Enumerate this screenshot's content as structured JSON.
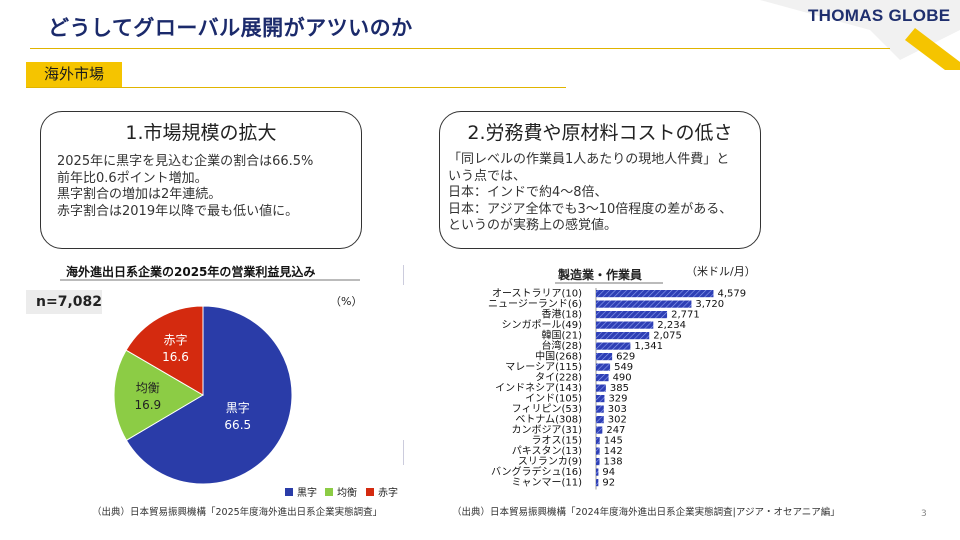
{
  "header": {
    "title": "どうしてグローバル展開がアツいのか",
    "logo_text": "THOMAS GLOBE"
  },
  "section_tag": "海外市場",
  "card1": {
    "title": "1.市場規模の拡大",
    "lines": [
      "2025年に黒字を見込む企業の割合は66.5%",
      "前年比0.6ポイント増加。",
      "黒字割合の増加は2年連続。",
      "赤字割合は2019年以降で最も低い値に。"
    ]
  },
  "card2": {
    "title": "2.労務費や原材料コストの低さ",
    "lines": [
      "「同レベルの作業員1人あたりの現地人件費」と",
      "いう点では、",
      "日本：インドで約4〜8倍、",
      "日本：アジア全体でも3〜10倍程度の差がある、",
      "というのが実務上の感覚値。"
    ]
  },
  "chart_data": [
    {
      "type": "pie",
      "title": "海外進出日系企業の2025年の営業利益見込み",
      "unit": "（%）",
      "sample": "n=7,082",
      "slices": [
        {
          "label": "黒字",
          "value": 66.5,
          "color": "#2a3ca8"
        },
        {
          "label": "均衡",
          "value": 16.9,
          "color": "#8ccc45"
        },
        {
          "label": "赤字",
          "value": 16.6,
          "color": "#d42a0f"
        }
      ],
      "legend_position": "bottom-right",
      "source": "（出典）日本貿易振興機構「2025年度海外進出日系企業実態調査」"
    },
    {
      "type": "bar",
      "orientation": "horizontal",
      "title": "製造業・作業員",
      "unit": "（米ドル/月）",
      "categories": [
        "オーストラリア(10)",
        "ニュージーランド(6)",
        "香港(18)",
        "シンガポール(49)",
        "韓国(21)",
        "台湾(28)",
        "中国(268)",
        "マレーシア(115)",
        "タイ(228)",
        "インドネシア(143)",
        "インド(105)",
        "フィリピン(53)",
        "ベトナム(308)",
        "カンボジア(31)",
        "ラオス(15)",
        "パキスタン(13)",
        "スリランカ(9)",
        "バングラデシュ(16)",
        "ミャンマー(11)"
      ],
      "values": [
        4579,
        3720,
        2771,
        2234,
        2075,
        1341,
        629,
        549,
        490,
        385,
        329,
        303,
        302,
        247,
        145,
        142,
        138,
        94,
        92
      ],
      "value_labels": [
        "4,579",
        "3,720",
        "2,771",
        "2,234",
        "2,075",
        "1,341",
        "629",
        "549",
        "490",
        "385",
        "329",
        "303",
        "302",
        "247",
        "145",
        "142",
        "138",
        "94",
        "92"
      ],
      "xlim": [
        0,
        4600
      ],
      "color": "#2e3fb5",
      "source": "（出典）日本貿易振興機構「2024年度海外進出日系企業実態調査|アジア・オセアニア編」"
    }
  ],
  "page_number": "3"
}
